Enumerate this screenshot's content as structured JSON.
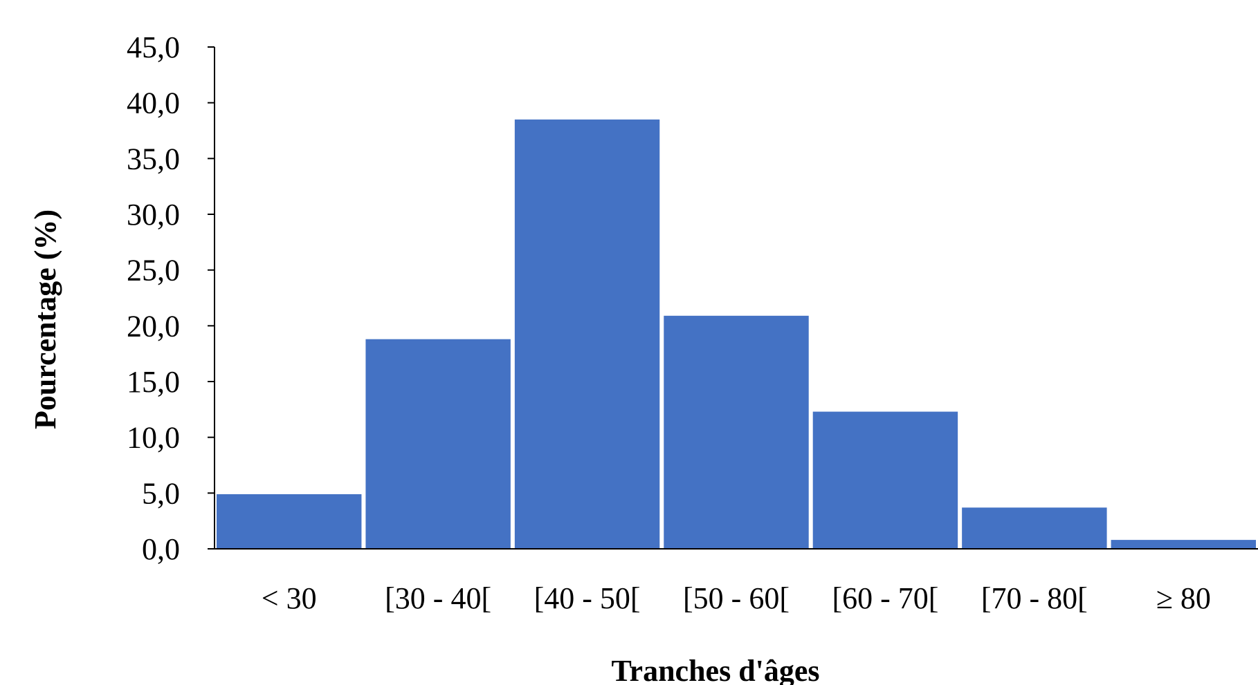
{
  "chart_data": {
    "type": "bar",
    "title": "",
    "xlabel": "Tranches d'âges",
    "ylabel": "Pourcentage (%)",
    "categories": [
      "< 30",
      "[30 - 40[",
      "[40 - 50[",
      "[50 - 60[",
      "[60 - 70[",
      "[70 - 80[",
      "≥ 80"
    ],
    "values": [
      4.9,
      18.8,
      38.5,
      20.9,
      12.3,
      3.7,
      0.8
    ],
    "ylim": [
      0,
      45
    ],
    "yticks": [
      0,
      5,
      10,
      15,
      20,
      25,
      30,
      35,
      40,
      45
    ],
    "ytick_labels": [
      "0,0",
      "5,0",
      "10,0",
      "15,0",
      "20,0",
      "25,0",
      "30,0",
      "35,0",
      "40,0",
      "45,0"
    ],
    "bar_color": "#4472C4",
    "grid": false,
    "legend": "none"
  }
}
